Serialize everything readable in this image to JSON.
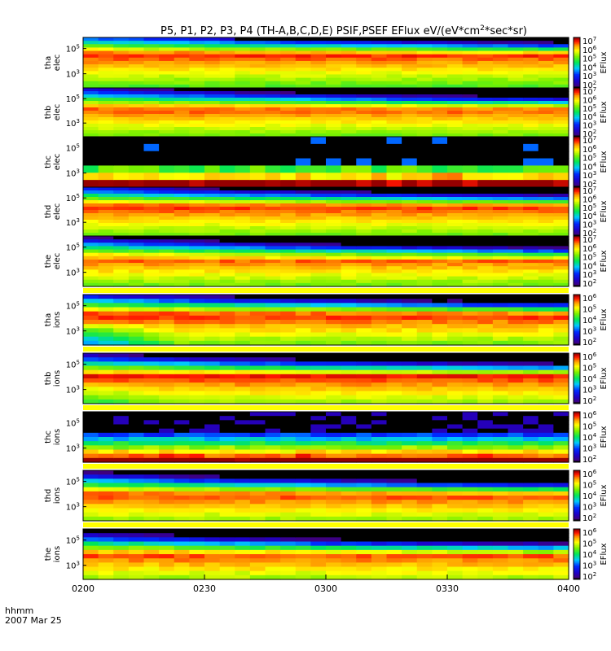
{
  "chart_data": {
    "type": "heatmap",
    "title_prefix": "P5, P1, P2, P3, P4 (TH-A,B,C,D,E) PSIF,PSEF EFlux eV/(eV*cm",
    "title_sup": "2",
    "title_suffix": "*sec*sr)",
    "x_label_left": "hhmm",
    "x_date": "2007 Mar 25",
    "x_ticks": [
      "0200",
      "0230",
      "0300",
      "0330",
      "0400"
    ],
    "x_range_hours": [
      2.0,
      4.0
    ],
    "colorbar_label": "EFlux",
    "colorscale": "rainbow (purple-blue-cyan-green-yellow-red), log scale",
    "time_bins": 32,
    "energy_bins": 15,
    "panels": [
      {
        "probe": "tha",
        "species": "elec",
        "y_tick_exponents": [
          "3",
          "5"
        ],
        "cbar_exponents": [
          "2",
          "3",
          "4",
          "5",
          "6",
          "7"
        ],
        "data_rows": 15,
        "hot_row": 4,
        "lead_decay": 0.0,
        "top_cool": 0.35,
        "floor": 0.0,
        "noise": 0.06
      },
      {
        "probe": "thb",
        "species": "elec",
        "y_tick_exponents": [
          "3",
          "5"
        ],
        "cbar_exponents": [
          "2",
          "3",
          "4",
          "5",
          "6",
          "7"
        ],
        "data_rows": 15,
        "hot_row": 5,
        "lead_decay": 0.0,
        "top_cool": 0.45,
        "floor": 0.0,
        "noise": 0.05
      },
      {
        "probe": "thc",
        "species": "elec",
        "y_tick_exponents": [
          "3",
          "5"
        ],
        "cbar_exponents": [
          "2",
          "3",
          "4",
          "5",
          "6",
          "7"
        ],
        "data_rows": 7,
        "hot_row": 0,
        "lead_decay": 0.0,
        "top_cool": 0.9,
        "floor": 0.0,
        "noise": 0.1
      },
      {
        "probe": "thd",
        "species": "elec",
        "y_tick_exponents": [
          "3",
          "5"
        ],
        "cbar_exponents": [
          "2",
          "3",
          "4",
          "5",
          "6",
          "7"
        ],
        "data_rows": 15,
        "hot_row": 5,
        "lead_decay": 0.0,
        "top_cool": 0.4,
        "floor": 0.0,
        "noise": 0.05
      },
      {
        "probe": "the",
        "species": "elec",
        "y_tick_exponents": [
          "3",
          "5"
        ],
        "cbar_exponents": [
          "2",
          "3",
          "4",
          "5",
          "6",
          "7"
        ],
        "data_rows": 15,
        "hot_row": 5,
        "lead_decay": 0.0,
        "top_cool": 0.5,
        "floor": 0.0,
        "noise": 0.06
      },
      {
        "probe": "tha",
        "species": "ions",
        "y_tick_exponents": [
          "3",
          "5"
        ],
        "cbar_exponents": [
          "2",
          "3",
          "4",
          "5",
          "6"
        ],
        "data_rows": 12,
        "hot_row": 5,
        "lead_decay": 0.5,
        "top_cool": 0.4,
        "floor": 0.0,
        "noise": 0.06
      },
      {
        "probe": "thb",
        "species": "ions",
        "y_tick_exponents": [
          "3",
          "5"
        ],
        "cbar_exponents": [
          "2",
          "3",
          "4",
          "5",
          "6"
        ],
        "data_rows": 12,
        "hot_row": 6,
        "lead_decay": 0.2,
        "top_cool": 0.45,
        "floor": 0.0,
        "noise": 0.05
      },
      {
        "probe": "thc",
        "species": "ions",
        "y_tick_exponents": [
          "3",
          "5"
        ],
        "cbar_exponents": [
          "2",
          "3",
          "4",
          "5",
          "6"
        ],
        "data_rows": 12,
        "hot_row": 0,
        "lead_decay": 0.0,
        "top_cool": 0.95,
        "floor": 0.0,
        "noise": 0.08
      },
      {
        "probe": "thd",
        "species": "ions",
        "y_tick_exponents": [
          "3",
          "5"
        ],
        "cbar_exponents": [
          "2",
          "3",
          "4",
          "5",
          "6"
        ],
        "data_rows": 12,
        "hot_row": 6,
        "lead_decay": 0.0,
        "top_cool": 0.5,
        "floor": 0.0,
        "noise": 0.05
      },
      {
        "probe": "the",
        "species": "ions",
        "y_tick_exponents": [
          "3",
          "5"
        ],
        "cbar_exponents": [
          "2",
          "3",
          "4",
          "5",
          "6"
        ],
        "data_rows": 12,
        "hot_row": 6,
        "lead_decay": 0.0,
        "top_cool": 0.55,
        "floor": 0.0,
        "noise": 0.07
      }
    ]
  }
}
